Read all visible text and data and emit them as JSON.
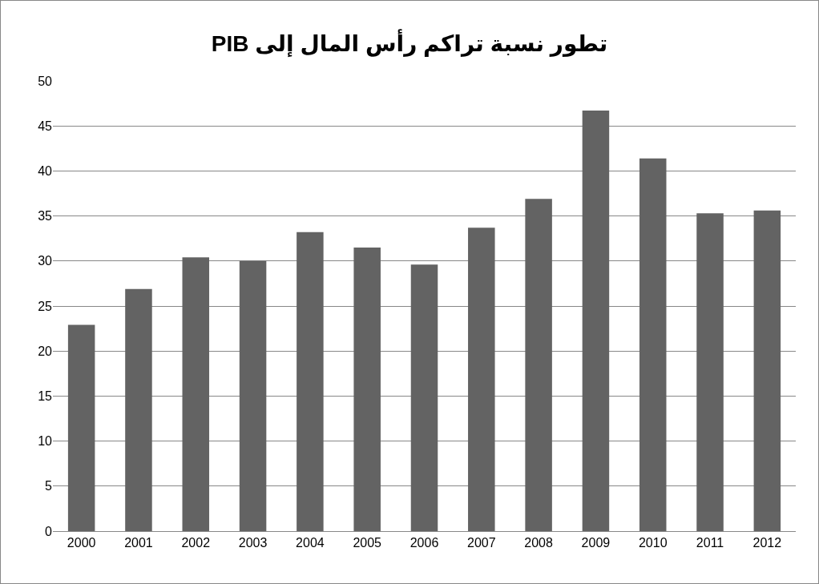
{
  "chart_data": {
    "type": "bar",
    "title": "تطور نسبة تراكم رأس المال إلى PIB",
    "categories": [
      "2000",
      "2001",
      "2002",
      "2003",
      "2004",
      "2005",
      "2006",
      "2007",
      "2008",
      "2009",
      "2010",
      "2011",
      "2012"
    ],
    "values": [
      22.9,
      26.9,
      30.4,
      30.0,
      33.2,
      31.5,
      29.6,
      33.7,
      36.9,
      46.7,
      41.4,
      35.3,
      35.6
    ],
    "color": "#636363",
    "ylim": [
      0,
      50
    ],
    "yticks": [
      0,
      5,
      10,
      15,
      20,
      25,
      30,
      35,
      40,
      45,
      50
    ],
    "grid": "y",
    "legend": false
  }
}
